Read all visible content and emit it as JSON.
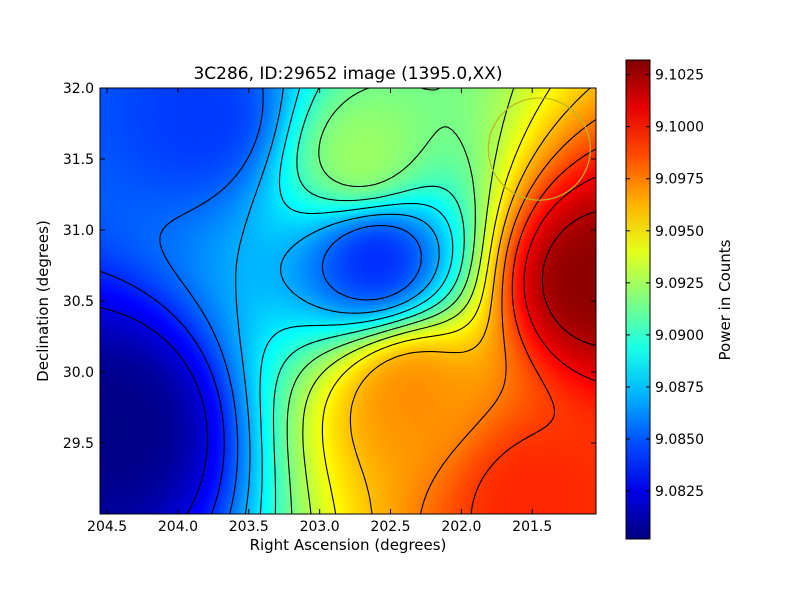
{
  "chart_data": {
    "type": "heatmap",
    "title": "3C286, ID:29652 image (1395.0,XX)",
    "xlabel": "Right Ascension (degrees)",
    "ylabel": "Declination (degrees)",
    "xlim": [
      204.55,
      201.05
    ],
    "ylim": [
      29.0,
      32.0
    ],
    "x_ticks": [
      "204.5",
      "204.0",
      "203.5",
      "203.0",
      "202.5",
      "202.0",
      "201.5"
    ],
    "y_ticks": [
      "29.5",
      "30.0",
      "30.5",
      "31.0",
      "31.5",
      "32.0"
    ],
    "grid": false,
    "colormap": "jet",
    "colorbar": {
      "label": "Power in Counts",
      "range": [
        9.0802,
        9.1032
      ],
      "ticks": [
        "9.0825",
        "9.0850",
        "9.0875",
        "9.0900",
        "9.0925",
        "9.0950",
        "9.0975",
        "9.1000",
        "9.1025"
      ]
    },
    "contours": {
      "color": "#000000",
      "levels": [
        9.0825,
        9.084,
        9.0855,
        9.087,
        9.0885,
        9.09,
        9.0915,
        9.093,
        9.0945,
        9.096,
        9.0975,
        9.099,
        9.1005,
        9.102
      ]
    },
    "features": [
      {
        "ra": 204.45,
        "dec": 29.6,
        "value": 9.0803,
        "kind": "minimum"
      },
      {
        "ra": 202.6,
        "dec": 30.8,
        "value": 9.0838,
        "kind": "minimum"
      },
      {
        "ra": 203.8,
        "dec": 31.8,
        "value": 9.0843,
        "kind": "minimum"
      },
      {
        "ra": 202.35,
        "dec": 29.85,
        "value": 9.0972,
        "kind": "maximum"
      },
      {
        "ra": 201.08,
        "dec": 30.65,
        "value": 9.103,
        "kind": "maximum"
      },
      {
        "ra": 201.5,
        "dec": 29.1,
        "value": 9.0995,
        "kind": "maximum"
      },
      {
        "ra": 202.7,
        "dec": 31.5,
        "value": 9.0925,
        "kind": "ridge"
      }
    ],
    "annotation": {
      "shape": "circle",
      "ra": 201.45,
      "dec": 31.57,
      "radius_deg": 0.36,
      "color": "#b8b820"
    }
  }
}
